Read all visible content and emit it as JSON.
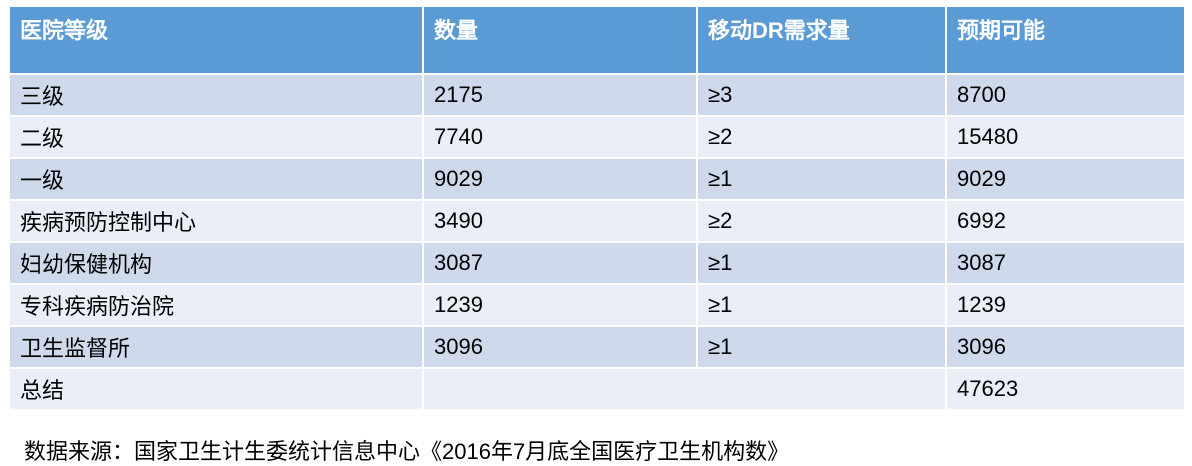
{
  "table": {
    "header": [
      "医院等级",
      "数量",
      "移动DR需求量",
      "预期可能"
    ],
    "rows": [
      [
        "三级",
        2175,
        "≥3",
        8700
      ],
      [
        "二级",
        7740,
        "≥2",
        15480
      ],
      [
        "一级",
        9029,
        "≥1",
        9029
      ],
      [
        "疾病预防控制中心",
        3490,
        "≥2",
        6992
      ],
      [
        "妇幼保健机构",
        3087,
        "≥1",
        3087
      ],
      [
        "专科疾病防治院",
        1239,
        "≥1",
        1239
      ],
      [
        "卫生监督所",
        3096,
        "≥1",
        3096
      ]
    ],
    "total": {
      "label": "总结",
      "value": 47623
    }
  },
  "footnote": "数据来源：国家卫生计生委统计信息中心《2016年7月底全国医疗卫生机构数》"
}
